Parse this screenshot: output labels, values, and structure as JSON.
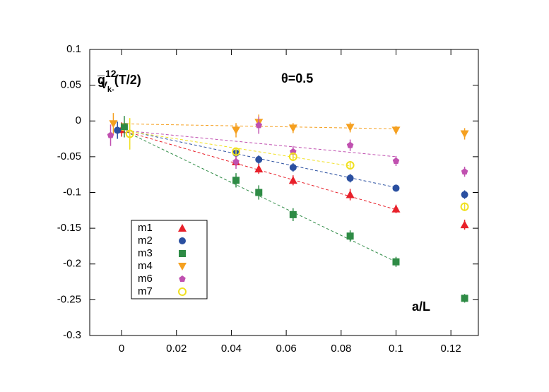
{
  "chart_data": {
    "type": "scatter",
    "ylabel_parts": [
      "g̅",
      "12",
      "V",
      "k-",
      "(T/2)"
    ],
    "annotation": "θ=0.5",
    "xlabel": "a/L",
    "xlim": [
      -0.0116,
      0.13
    ],
    "ylim": [
      -0.3,
      0.1
    ],
    "xticks": [
      0,
      0.02,
      0.04,
      0.06,
      0.08,
      0.1,
      0.12
    ],
    "yticks": [
      0.1,
      0.05,
      0,
      -0.05,
      -0.1,
      -0.15,
      -0.2,
      -0.25,
      -0.3
    ],
    "legend": "lower-left",
    "series": [
      {
        "name": "m1",
        "color": "#e8202a",
        "marker": "triangle-up",
        "x": [
          0.0,
          0.0417,
          0.05,
          0.0625,
          0.0833,
          0.1,
          0.125
        ],
        "values": [
          -0.012,
          -0.057,
          -0.067,
          -0.083,
          -0.103,
          -0.123,
          -0.145
        ],
        "errors": [
          0.01,
          0.006,
          0.007,
          0.007,
          0.008,
          0.006,
          0.007
        ],
        "fit": {
          "x": [
            0,
            0.1
          ],
          "y": [
            -0.013,
            -0.124
          ]
        }
      },
      {
        "name": "m2",
        "color": "#2a4fa0",
        "marker": "circle",
        "x": [
          -0.0015,
          0.0417,
          0.05,
          0.0625,
          0.0833,
          0.1,
          0.125
        ],
        "values": [
          -0.013,
          -0.045,
          -0.054,
          -0.065,
          -0.08,
          -0.094,
          -0.103
        ],
        "errors": [
          0.012,
          0.005,
          0.006,
          0.006,
          0.006,
          0.005,
          0.006
        ],
        "fit": {
          "x": [
            0,
            0.1
          ],
          "y": [
            -0.012,
            -0.093
          ]
        }
      },
      {
        "name": "m3",
        "color": "#2e8b45",
        "marker": "square",
        "x": [
          0.001,
          0.0417,
          0.05,
          0.0625,
          0.0833,
          0.1,
          0.125
        ],
        "values": [
          -0.008,
          -0.083,
          -0.1,
          -0.131,
          -0.161,
          -0.197,
          -0.248
        ],
        "errors": [
          0.015,
          0.01,
          0.01,
          0.009,
          0.008,
          0.007,
          0.006
        ],
        "fit": {
          "x": [
            0,
            0.1
          ],
          "y": [
            -0.012,
            -0.197
          ]
        }
      },
      {
        "name": "m4",
        "color": "#f5a020",
        "marker": "triangle-down",
        "x": [
          -0.003,
          0.0417,
          0.05,
          0.0625,
          0.0833,
          0.1,
          0.125
        ],
        "values": [
          -0.004,
          -0.013,
          -0.002,
          -0.01,
          -0.009,
          -0.013,
          -0.018
        ],
        "errors": [
          0.015,
          0.01,
          0.011,
          0.007,
          0.007,
          0.006,
          0.008
        ],
        "fit": {
          "x": [
            0,
            0.1
          ],
          "y": [
            -0.004,
            -0.011
          ]
        }
      },
      {
        "name": "m6",
        "color": "#c050b0",
        "marker": "pentagon",
        "x": [
          -0.004,
          0.0417,
          0.05,
          0.0625,
          0.0833,
          0.1,
          0.125
        ],
        "values": [
          -0.02,
          -0.057,
          -0.006,
          -0.043,
          -0.034,
          -0.056,
          -0.071
        ],
        "errors": [
          0.015,
          0.01,
          0.012,
          0.008,
          0.008,
          0.007,
          0.007
        ],
        "fit": {
          "x": [
            0,
            0.1
          ],
          "y": [
            -0.013,
            -0.05
          ]
        }
      },
      {
        "name": "m7",
        "color": "#f0e020",
        "marker": "open-circle",
        "x": [
          0.003,
          0.0417,
          0.0625,
          0.0833,
          0.125
        ],
        "values": [
          -0.018,
          -0.043,
          -0.05,
          -0.062,
          -0.12
        ],
        "errors": [
          0.022,
          0.006,
          0.006,
          0.006,
          0.006
        ],
        "fit": {
          "x": [
            0,
            0.0833
          ],
          "y": [
            -0.013,
            -0.063
          ]
        }
      }
    ]
  }
}
